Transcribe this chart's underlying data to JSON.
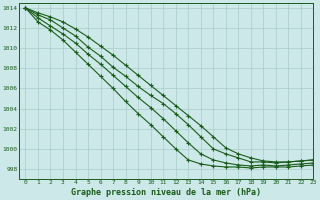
{
  "xlabel": "Graphe pression niveau de la mer (hPa)",
  "xlim": [
    -0.5,
    23
  ],
  "ylim": [
    997.0,
    1014.5
  ],
  "yticks": [
    998,
    1000,
    1002,
    1004,
    1006,
    1008,
    1010,
    1012,
    1014
  ],
  "xticks": [
    0,
    1,
    2,
    3,
    4,
    5,
    6,
    7,
    8,
    9,
    10,
    11,
    12,
    13,
    14,
    15,
    16,
    17,
    18,
    19,
    20,
    21,
    22,
    23
  ],
  "background_color": "#cce8e8",
  "grid_color": "#aacccc",
  "line_color": "#1a5c1a",
  "lines": [
    [
      1014.0,
      1013.3,
      1012.8,
      1012.0,
      1011.2,
      1010.1,
      1009.2,
      1008.1,
      1007.2,
      1006.2,
      1005.3,
      1004.5,
      1003.5,
      1002.4,
      1001.2,
      1000.0,
      999.5,
      999.1,
      998.7,
      998.7,
      998.6,
      998.7,
      998.8,
      998.9
    ],
    [
      1014.0,
      1013.0,
      1012.2,
      1011.4,
      1010.5,
      1009.4,
      1008.4,
      1007.3,
      1006.2,
      1005.1,
      1004.1,
      1003.0,
      1001.8,
      1000.6,
      999.5,
      998.9,
      998.6,
      998.4,
      998.3,
      998.4,
      998.3,
      998.4,
      998.5,
      998.6
    ],
    [
      1014.0,
      1012.6,
      1011.8,
      1010.8,
      1009.6,
      1008.4,
      1007.2,
      1006.0,
      1004.7,
      1003.5,
      1002.4,
      1001.2,
      1000.0,
      998.9,
      998.5,
      998.3,
      998.2,
      998.2,
      998.1,
      998.2,
      998.2,
      998.2,
      998.3,
      998.4
    ],
    [
      1014.0,
      1013.5,
      1013.1,
      1012.6,
      1011.9,
      1011.1,
      1010.2,
      1009.3,
      1008.3,
      1007.3,
      1006.3,
      1005.3,
      1004.3,
      1003.3,
      1002.3,
      1001.2,
      1000.1,
      999.5,
      999.1,
      998.8,
      998.7,
      998.7,
      998.8,
      998.9
    ]
  ]
}
